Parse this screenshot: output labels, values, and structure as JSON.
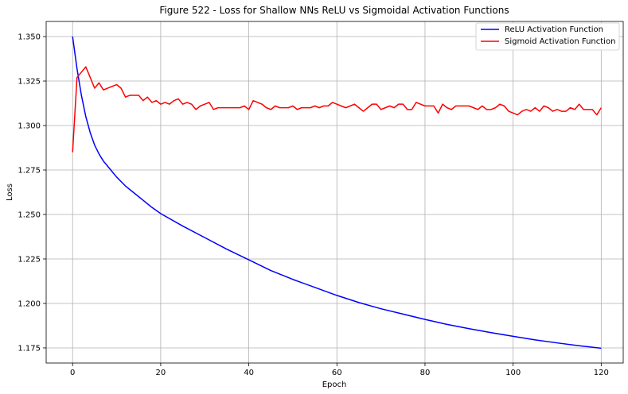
{
  "chart_data": {
    "type": "line",
    "title": "Figure 522 - Loss for Shallow NNs ReLU vs Sigmoidal Activation Functions",
    "xlabel": "Epoch",
    "ylabel": "Loss",
    "xlim": [
      -6,
      125
    ],
    "ylim": [
      1.1665,
      1.3585
    ],
    "xticks": [
      0,
      20,
      40,
      60,
      80,
      100,
      120
    ],
    "xtick_labels": [
      "0",
      "20",
      "40",
      "60",
      "80",
      "100",
      "120"
    ],
    "yticks": [
      1.175,
      1.2,
      1.225,
      1.25,
      1.275,
      1.3,
      1.325,
      1.35
    ],
    "ytick_labels": [
      "1.175",
      "1.200",
      "1.225",
      "1.250",
      "1.275",
      "1.300",
      "1.325",
      "1.350"
    ],
    "grid": true,
    "legend_position": "top-right",
    "series": [
      {
        "name": "ReLU Activation Function",
        "color": "#0000ff",
        "x": [
          0,
          1,
          2,
          3,
          4,
          5,
          6,
          7,
          8,
          9,
          10,
          12,
          14,
          16,
          18,
          20,
          25,
          30,
          35,
          40,
          45,
          50,
          55,
          60,
          65,
          70,
          75,
          80,
          85,
          90,
          95,
          100,
          105,
          110,
          115,
          120
        ],
        "values": [
          1.35,
          1.332,
          1.317,
          1.305,
          1.296,
          1.289,
          1.284,
          1.28,
          1.277,
          1.274,
          1.271,
          1.266,
          1.262,
          1.258,
          1.254,
          1.2505,
          1.2435,
          1.237,
          1.2305,
          1.2245,
          1.2185,
          1.2135,
          1.209,
          1.2045,
          1.2005,
          1.197,
          1.194,
          1.191,
          1.1882,
          1.1858,
          1.1836,
          1.1815,
          1.1795,
          1.1778,
          1.1762,
          1.1748
        ]
      },
      {
        "name": "Sigmoid Activation Function",
        "color": "#ff0000",
        "x": [
          0,
          1,
          2,
          3,
          4,
          5,
          6,
          7,
          8,
          9,
          10,
          11,
          12,
          13,
          14,
          15,
          16,
          17,
          18,
          19,
          20,
          21,
          22,
          23,
          24,
          25,
          26,
          27,
          28,
          29,
          30,
          31,
          32,
          33,
          34,
          35,
          36,
          37,
          38,
          39,
          40,
          41,
          42,
          43,
          44,
          45,
          46,
          47,
          48,
          49,
          50,
          51,
          52,
          53,
          54,
          55,
          56,
          57,
          58,
          59,
          60,
          61,
          62,
          63,
          64,
          65,
          66,
          67,
          68,
          69,
          70,
          71,
          72,
          73,
          74,
          75,
          76,
          77,
          78,
          79,
          80,
          81,
          82,
          83,
          84,
          85,
          86,
          87,
          88,
          89,
          90,
          91,
          92,
          93,
          94,
          95,
          96,
          97,
          98,
          99,
          100,
          101,
          102,
          103,
          104,
          105,
          106,
          107,
          108,
          109,
          110,
          111,
          112,
          113,
          114,
          115,
          116,
          117,
          118,
          119,
          120
        ],
        "values": [
          1.285,
          1.327,
          1.33,
          1.333,
          1.327,
          1.321,
          1.324,
          1.32,
          1.321,
          1.322,
          1.323,
          1.321,
          1.316,
          1.317,
          1.317,
          1.317,
          1.314,
          1.316,
          1.313,
          1.314,
          1.312,
          1.313,
          1.312,
          1.314,
          1.315,
          1.312,
          1.313,
          1.312,
          1.309,
          1.311,
          1.312,
          1.313,
          1.309,
          1.31,
          1.31,
          1.31,
          1.31,
          1.31,
          1.31,
          1.311,
          1.309,
          1.314,
          1.313,
          1.312,
          1.31,
          1.309,
          1.311,
          1.31,
          1.31,
          1.31,
          1.311,
          1.309,
          1.31,
          1.31,
          1.31,
          1.311,
          1.31,
          1.311,
          1.311,
          1.313,
          1.312,
          1.311,
          1.31,
          1.311,
          1.312,
          1.31,
          1.308,
          1.31,
          1.312,
          1.312,
          1.309,
          1.31,
          1.311,
          1.31,
          1.312,
          1.312,
          1.309,
          1.309,
          1.313,
          1.312,
          1.311,
          1.311,
          1.311,
          1.307,
          1.312,
          1.31,
          1.309,
          1.311,
          1.311,
          1.311,
          1.311,
          1.31,
          1.309,
          1.311,
          1.309,
          1.309,
          1.31,
          1.312,
          1.311,
          1.308,
          1.307,
          1.306,
          1.308,
          1.309,
          1.308,
          1.31,
          1.308,
          1.311,
          1.31,
          1.308,
          1.309,
          1.308,
          1.308,
          1.31,
          1.309,
          1.312,
          1.309,
          1.309,
          1.309,
          1.306,
          1.31
        ]
      }
    ]
  }
}
